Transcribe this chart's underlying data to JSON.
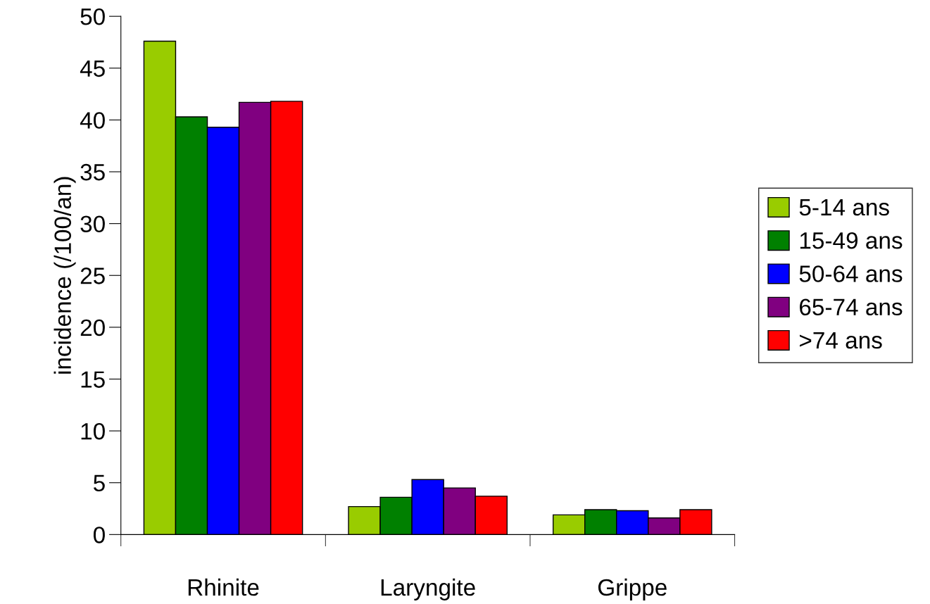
{
  "chart_data": {
    "type": "bar",
    "ylabel": "incidence (/100/an)",
    "categories": [
      "Rhinite",
      "Laryngite",
      "Grippe"
    ],
    "series": [
      {
        "name": "5-14 ans",
        "color": "#99cc00",
        "values": [
          47.6,
          2.7,
          1.9
        ]
      },
      {
        "name": "15-49 ans",
        "color": "#008000",
        "values": [
          40.3,
          3.6,
          2.4
        ]
      },
      {
        "name": "50-64 ans",
        "color": "#0000ff",
        "values": [
          39.3,
          5.3,
          2.3
        ]
      },
      {
        "name": "65-74 ans",
        "color": "#800080",
        "values": [
          41.7,
          4.5,
          1.6
        ]
      },
      {
        "name": ">74 ans",
        "color": "#ff0000",
        "values": [
          41.8,
          3.7,
          2.4
        ]
      }
    ],
    "ylim": [
      0,
      50
    ],
    "yticks": [
      0,
      5,
      10,
      15,
      20,
      25,
      30,
      35,
      40,
      45,
      50
    ],
    "grid": false,
    "legend": "right"
  }
}
